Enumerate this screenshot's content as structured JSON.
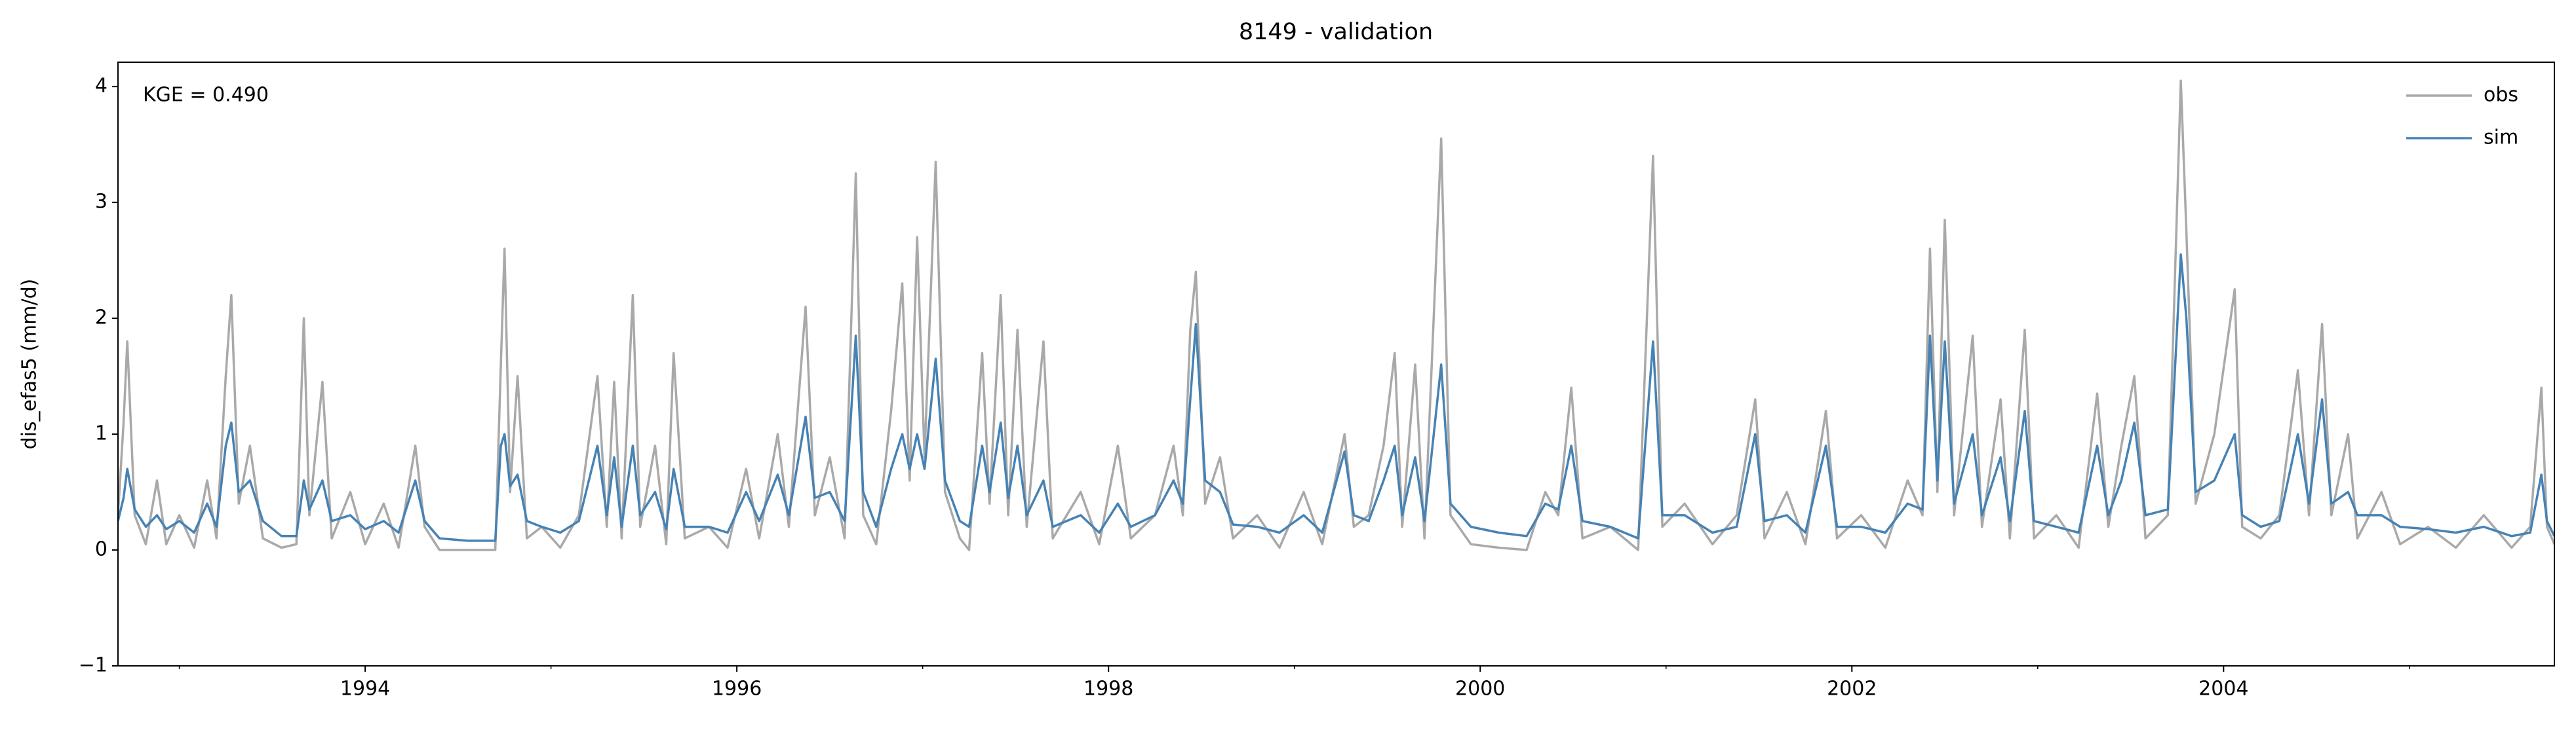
{
  "chart_data": {
    "type": "line",
    "title": "8149 - validation",
    "ylabel": "dis_efas5 (mm/d)",
    "annotation": "KGE = 0.490",
    "legend": "upper right",
    "xlim": [
      1992.67,
      2005.78
    ],
    "xticks": [
      1994,
      1996,
      1998,
      2000,
      2002,
      2004
    ],
    "xminorticks": [
      1993,
      1995,
      1997,
      1999,
      2001,
      2003,
      2005
    ],
    "ylim": [
      -1,
      4.21
    ],
    "yticks": [
      {
        "value": -1,
        "label": "−1"
      },
      0,
      1,
      2,
      3,
      4
    ],
    "x": [
      1992.67,
      1992.7,
      1992.72,
      1992.76,
      1992.82,
      1992.88,
      1992.93,
      1993.0,
      1993.08,
      1993.15,
      1993.2,
      1993.25,
      1993.28,
      1993.32,
      1993.38,
      1993.45,
      1993.55,
      1993.63,
      1993.67,
      1993.7,
      1993.77,
      1993.82,
      1993.92,
      1994.0,
      1994.1,
      1994.18,
      1994.27,
      1994.32,
      1994.4,
      1994.55,
      1994.7,
      1994.73,
      1994.75,
      1994.78,
      1994.82,
      1994.87,
      1994.95,
      1995.05,
      1995.15,
      1995.25,
      1995.3,
      1995.34,
      1995.38,
      1995.44,
      1995.48,
      1995.56,
      1995.62,
      1995.66,
      1995.72,
      1995.85,
      1995.95,
      1996.05,
      1996.12,
      1996.22,
      1996.28,
      1996.37,
      1996.42,
      1996.5,
      1996.58,
      1996.64,
      1996.68,
      1996.75,
      1996.83,
      1996.89,
      1996.93,
      1996.97,
      1997.01,
      1997.07,
      1997.12,
      1997.2,
      1997.25,
      1997.32,
      1997.36,
      1997.42,
      1997.46,
      1997.51,
      1997.56,
      1997.65,
      1997.7,
      1997.85,
      1997.95,
      1998.05,
      1998.12,
      1998.25,
      1998.35,
      1998.4,
      1998.44,
      1998.47,
      1998.52,
      1998.6,
      1998.67,
      1998.8,
      1998.92,
      1999.05,
      1999.15,
      1999.27,
      1999.32,
      1999.4,
      1999.48,
      1999.54,
      1999.58,
      1999.65,
      1999.7,
      1999.79,
      1999.84,
      1999.95,
      2000.1,
      2000.25,
      2000.35,
      2000.42,
      2000.49,
      2000.55,
      2000.7,
      2000.85,
      2000.93,
      2000.98,
      2001.1,
      2001.25,
      2001.38,
      2001.48,
      2001.53,
      2001.65,
      2001.75,
      2001.86,
      2001.92,
      2002.05,
      2002.18,
      2002.3,
      2002.38,
      2002.42,
      2002.46,
      2002.5,
      2002.55,
      2002.65,
      2002.7,
      2002.8,
      2002.85,
      2002.93,
      2002.98,
      2003.1,
      2003.22,
      2003.32,
      2003.38,
      2003.45,
      2003.52,
      2003.58,
      2003.7,
      2003.77,
      2003.8,
      2003.85,
      2003.95,
      2004.06,
      2004.1,
      2004.2,
      2004.3,
      2004.4,
      2004.46,
      2004.53,
      2004.58,
      2004.67,
      2004.72,
      2004.85,
      2004.95,
      2005.1,
      2005.25,
      2005.4,
      2005.55,
      2005.65,
      2005.71,
      2005.74,
      2005.78
    ],
    "series": [
      {
        "name": "obs",
        "color": "#a9a9a9",
        "values": [
          0.3,
          1.1,
          1.8,
          0.3,
          0.05,
          0.6,
          0.05,
          0.3,
          0.02,
          0.6,
          0.1,
          1.5,
          2.2,
          0.4,
          0.9,
          0.1,
          0.02,
          0.05,
          2.0,
          0.3,
          1.45,
          0.1,
          0.5,
          0.05,
          0.4,
          0.02,
          0.9,
          0.2,
          0.0,
          0.0,
          0.0,
          1.6,
          2.6,
          0.5,
          1.5,
          0.1,
          0.2,
          0.02,
          0.3,
          1.5,
          0.2,
          1.45,
          0.1,
          2.2,
          0.2,
          0.9,
          0.05,
          1.7,
          0.1,
          0.2,
          0.02,
          0.7,
          0.1,
          1.0,
          0.2,
          2.1,
          0.3,
          0.8,
          0.1,
          3.25,
          0.3,
          0.05,
          1.2,
          2.3,
          0.6,
          2.7,
          0.8,
          3.35,
          0.5,
          0.1,
          0.0,
          1.7,
          0.4,
          2.2,
          0.3,
          1.9,
          0.2,
          1.8,
          0.1,
          0.5,
          0.05,
          0.9,
          0.1,
          0.3,
          0.9,
          0.3,
          1.9,
          2.4,
          0.4,
          0.8,
          0.1,
          0.3,
          0.02,
          0.5,
          0.05,
          1.0,
          0.2,
          0.3,
          0.9,
          1.7,
          0.2,
          1.6,
          0.1,
          3.55,
          0.3,
          0.05,
          0.02,
          0.0,
          0.5,
          0.3,
          1.4,
          0.1,
          0.2,
          0.0,
          3.4,
          0.2,
          0.4,
          0.05,
          0.3,
          1.3,
          0.1,
          0.5,
          0.05,
          1.2,
          0.1,
          0.3,
          0.02,
          0.6,
          0.3,
          2.6,
          0.5,
          2.85,
          0.3,
          1.85,
          0.2,
          1.3,
          0.1,
          1.9,
          0.1,
          0.3,
          0.02,
          1.35,
          0.2,
          0.9,
          1.5,
          0.1,
          0.3,
          4.05,
          2.75,
          0.4,
          1.0,
          2.25,
          0.2,
          0.1,
          0.3,
          1.55,
          0.3,
          1.95,
          0.3,
          1.0,
          0.1,
          0.5,
          0.05,
          0.2,
          0.02,
          0.3,
          0.02,
          0.2,
          1.4,
          0.2,
          0.05
        ]
      },
      {
        "name": "sim",
        "color": "#4682b4",
        "values": [
          0.25,
          0.45,
          0.7,
          0.35,
          0.2,
          0.3,
          0.18,
          0.25,
          0.15,
          0.4,
          0.2,
          0.9,
          1.1,
          0.5,
          0.6,
          0.25,
          0.12,
          0.12,
          0.6,
          0.35,
          0.6,
          0.25,
          0.3,
          0.18,
          0.25,
          0.15,
          0.6,
          0.25,
          0.1,
          0.08,
          0.08,
          0.9,
          1.0,
          0.55,
          0.65,
          0.25,
          0.2,
          0.15,
          0.25,
          0.9,
          0.3,
          0.8,
          0.2,
          0.9,
          0.3,
          0.5,
          0.18,
          0.7,
          0.2,
          0.2,
          0.15,
          0.5,
          0.25,
          0.65,
          0.3,
          1.15,
          0.45,
          0.5,
          0.25,
          1.85,
          0.5,
          0.2,
          0.7,
          1.0,
          0.7,
          1.0,
          0.7,
          1.65,
          0.6,
          0.25,
          0.2,
          0.9,
          0.5,
          1.1,
          0.45,
          0.9,
          0.3,
          0.6,
          0.2,
          0.3,
          0.15,
          0.4,
          0.2,
          0.3,
          0.6,
          0.4,
          1.3,
          1.95,
          0.6,
          0.5,
          0.22,
          0.2,
          0.15,
          0.3,
          0.15,
          0.85,
          0.3,
          0.25,
          0.6,
          0.9,
          0.3,
          0.8,
          0.25,
          1.6,
          0.4,
          0.2,
          0.15,
          0.12,
          0.4,
          0.35,
          0.9,
          0.25,
          0.2,
          0.1,
          1.8,
          0.3,
          0.3,
          0.15,
          0.2,
          1.0,
          0.25,
          0.3,
          0.15,
          0.9,
          0.2,
          0.2,
          0.15,
          0.4,
          0.35,
          1.85,
          0.6,
          1.8,
          0.4,
          1.0,
          0.3,
          0.8,
          0.25,
          1.2,
          0.25,
          0.2,
          0.15,
          0.9,
          0.3,
          0.6,
          1.1,
          0.3,
          0.35,
          2.55,
          2.0,
          0.5,
          0.6,
          1.0,
          0.3,
          0.2,
          0.25,
          1.0,
          0.4,
          1.3,
          0.4,
          0.5,
          0.3,
          0.3,
          0.2,
          0.18,
          0.15,
          0.2,
          0.12,
          0.15,
          0.65,
          0.25,
          0.12
        ]
      }
    ]
  }
}
